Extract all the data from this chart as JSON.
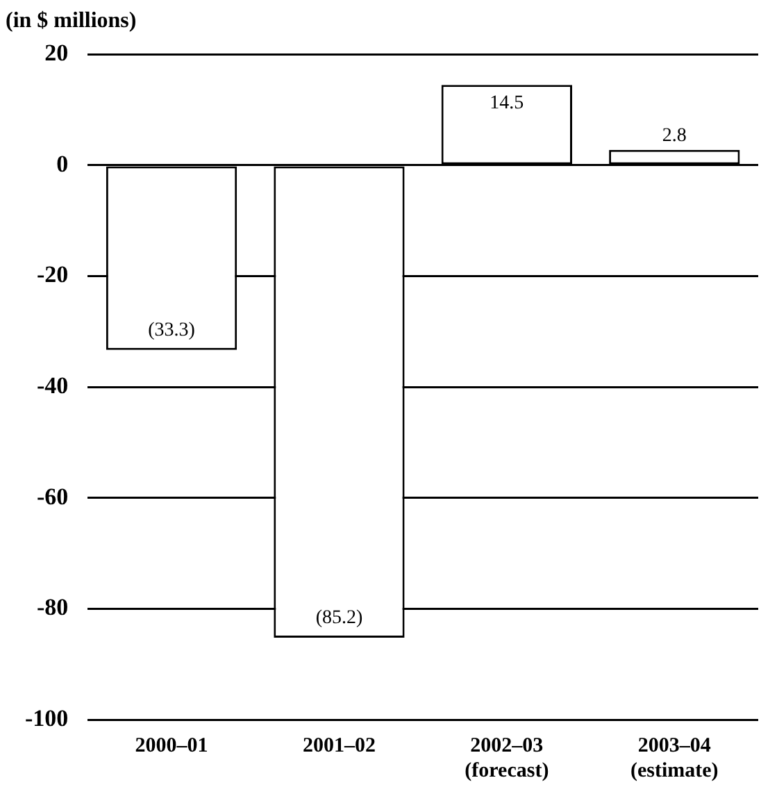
{
  "chart_data": {
    "type": "bar",
    "ylabel": "(in $ millions)",
    "categories": [
      "2000–01",
      "2001–02",
      "2002–03\n(forecast)",
      "2003–04\n(estimate)"
    ],
    "values": [
      -33.3,
      -85.2,
      14.5,
      2.8
    ],
    "value_labels": [
      "(33.3)",
      "(85.2)",
      "14.5",
      "2.8"
    ],
    "color": "#ffffff",
    "ylim": [
      -100,
      20
    ],
    "yticks": [
      -100,
      -80,
      -60,
      -40,
      -20,
      0,
      20
    ],
    "grid": "y"
  }
}
